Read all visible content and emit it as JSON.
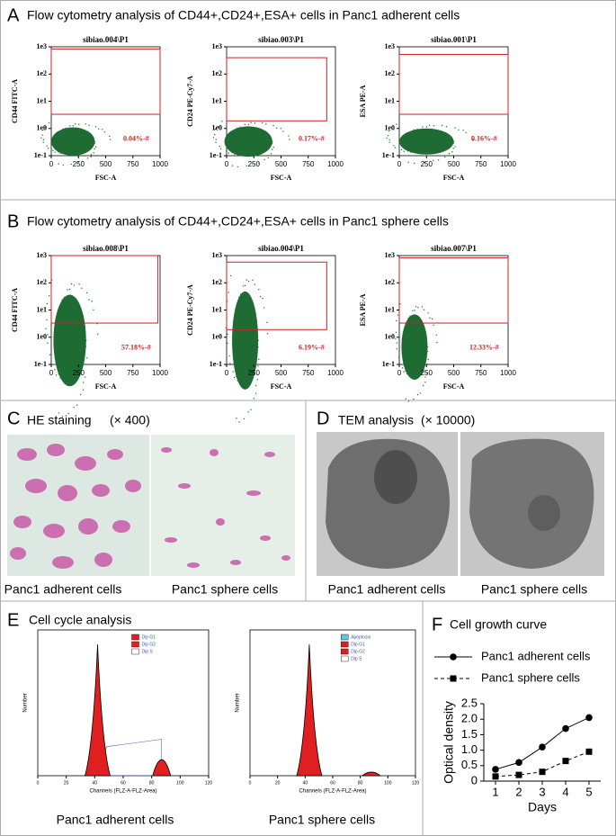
{
  "panels": {
    "A": {
      "label": "A",
      "title": "Flow cytometry analysis of CD44+,CD24+,ESA+ cells in Panc1 adherent cells"
    },
    "B": {
      "label": "B",
      "title": "Flow cytometry analysis of CD44+,CD24+,ESA+ cells in Panc1 sphere cells"
    },
    "C": {
      "label": "C",
      "title": "HE staining",
      "magnification": "(× 400)",
      "captions": [
        "Panc1 adherent cells",
        "Panc1 sphere cells"
      ]
    },
    "D": {
      "label": "D",
      "title": "TEM analysis",
      "magnification": "(× 10000)",
      "captions": [
        "Panc1 adherent cells",
        "Panc1 sphere cells"
      ]
    },
    "E": {
      "label": "E",
      "title": "Cell cycle analysis",
      "captions": [
        "Panc1 adherent cells",
        "Panc1 sphere cells"
      ]
    },
    "F": {
      "label": "F"
    }
  },
  "chart_data": [
    {
      "type": "flow",
      "title": "sibiao.004\\P1",
      "xlabel": "FSC-A",
      "ylabel": "CD44 FITC-A",
      "annotation": "0.04%-#",
      "color": "#1e6b34",
      "xlim": [
        0,
        1000
      ],
      "xticks": [
        0,
        250,
        500,
        750,
        1000
      ],
      "ylim": [
        0.1,
        1000
      ],
      "log_y": true,
      "yticks": [
        {
          "value": 0.1,
          "label": "1e-1"
        },
        {
          "value": 1,
          "label": "1e0"
        },
        {
          "value": 10,
          "label": "1e1"
        },
        {
          "value": 100,
          "label": "1e2"
        },
        {
          "value": 1000,
          "label": "1e3"
        }
      ]
    },
    {
      "type": "flow",
      "title": "sibiao.003\\P1",
      "xlabel": "FSC-A",
      "ylabel": "CD24 PE-Cy7-A",
      "annotation": "0.17%-#",
      "color": "#1e6b34",
      "xlim": [
        0,
        1000
      ],
      "xticks": [
        0,
        250,
        500,
        750,
        1000
      ],
      "ylim": [
        0.1,
        1000
      ],
      "log_y": true,
      "yticks": [
        {
          "value": 0.1,
          "label": "1e-1"
        },
        {
          "value": 1,
          "label": "1e0"
        },
        {
          "value": 10,
          "label": "1e1"
        },
        {
          "value": 100,
          "label": "1e2"
        },
        {
          "value": 1000,
          "label": "1e3"
        }
      ]
    },
    {
      "type": "flow",
      "title": "sibiao.001\\P1",
      "xlabel": "FSC-A",
      "ylabel": "ESA PE-A",
      "annotation": "0.16%-#",
      "color": "#1e6b34",
      "xlim": [
        0,
        1000
      ],
      "xticks": [
        0,
        250,
        500,
        750,
        1000
      ],
      "ylim": [
        0.1,
        1000
      ],
      "log_y": true,
      "yticks": [
        {
          "value": 0.1,
          "label": "1e-1"
        },
        {
          "value": 1,
          "label": "1e0"
        },
        {
          "value": 10,
          "label": "1e1"
        },
        {
          "value": 100,
          "label": "1e2"
        },
        {
          "value": 1000,
          "label": "1e3"
        }
      ]
    },
    {
      "type": "flow",
      "title": "sibiao.008\\P1",
      "xlabel": "FSC-A",
      "ylabel": "CD44 FITC-A",
      "annotation": "57.18%-#",
      "color": "#1e6b34",
      "xlim": [
        0,
        1000
      ],
      "xticks": [
        0,
        250,
        500,
        750,
        1000
      ],
      "ylim": [
        0.1,
        1000
      ],
      "log_y": true,
      "yticks": [
        {
          "value": 0.1,
          "label": "1e-1"
        },
        {
          "value": 1,
          "label": "1e0"
        },
        {
          "value": 10,
          "label": "1e1"
        },
        {
          "value": 100,
          "label": "1e2"
        },
        {
          "value": 1000,
          "label": "1e3"
        }
      ]
    },
    {
      "type": "flow",
      "title": "sibiao.004\\P1",
      "xlabel": "FSC-A",
      "ylabel": "CD24 PE-Cy7-A",
      "annotation": "6.19%-#",
      "color": "#1e6b34",
      "xlim": [
        0,
        1000
      ],
      "xticks": [
        0,
        250,
        500,
        750,
        1000
      ],
      "ylim": [
        0.1,
        1000
      ],
      "log_y": true,
      "yticks": [
        {
          "value": 0.1,
          "label": "1e-1"
        },
        {
          "value": 1,
          "label": "1e0"
        },
        {
          "value": 10,
          "label": "1e1"
        },
        {
          "value": 100,
          "label": "1e2"
        },
        {
          "value": 1000,
          "label": "1e3"
        }
      ]
    },
    {
      "type": "flow",
      "title": "sibiao.007\\P1",
      "xlabel": "FSC-A",
      "ylabel": "ESA PE-A",
      "annotation": "12.33%-#",
      "color": "#1e6b34",
      "xlim": [
        0,
        1000
      ],
      "xticks": [
        0,
        250,
        500,
        750,
        1000
      ],
      "ylim": [
        0.1,
        1000
      ],
      "log_y": true,
      "yticks": [
        {
          "value": 0.1,
          "label": "1e-1"
        },
        {
          "value": 1,
          "label": "1e0"
        },
        {
          "value": 10,
          "label": "1e1"
        },
        {
          "value": 100,
          "label": "1e2"
        },
        {
          "value": 1000,
          "label": "1e3"
        }
      ]
    },
    {
      "type": "cellcycle",
      "xlabel": "Channels (FLZ-A-FLZ-Area)",
      "ylabel": "Number",
      "xlim": [
        0,
        120
      ],
      "xticks": [
        0,
        20,
        40,
        60,
        80,
        100,
        120
      ],
      "legend": [
        {
          "name": "Dip G1",
          "color": "#e02020"
        },
        {
          "name": "Dip G2",
          "color": "#e02020"
        },
        {
          "name": "Dip S",
          "color": "#ffffff"
        }
      ]
    },
    {
      "type": "cellcycle",
      "xlabel": "Channels (FLZ-A-FLZ-Area)",
      "ylabel": "Number",
      "xlim": [
        0,
        120
      ],
      "xticks": [
        0,
        20,
        40,
        60,
        80,
        100,
        120
      ],
      "legend": [
        {
          "name": "Apoptosis",
          "color": "#5bc8e8"
        },
        {
          "name": "Dip G1",
          "color": "#e02020"
        },
        {
          "name": "Dip G2",
          "color": "#e02020"
        },
        {
          "name": "Dip S",
          "color": "#ffffff"
        }
      ]
    },
    {
      "type": "line",
      "title": "Cell growth curve",
      "xlabel": "Days",
      "ylabel": "Optical density",
      "x": [
        1,
        2,
        3,
        4,
        5
      ],
      "xlim": [
        0.5,
        5.5
      ],
      "xticks": [
        1,
        2,
        3,
        4,
        5
      ],
      "ylim": [
        0,
        2.5
      ],
      "yticks": [
        0,
        0.5,
        {
          "value": 1,
          "label": "1.0"
        },
        1.5,
        {
          "value": 2,
          "label": "2.0"
        },
        2.5
      ],
      "series": [
        {
          "name": "Panc1 adherent cells",
          "color": "#000000",
          "marker": "circle",
          "dashed": false,
          "values": [
            0.38,
            0.6,
            1.1,
            1.7,
            2.05
          ]
        },
        {
          "name": "Panc1 sphere cells",
          "color": "#000000",
          "marker": "square",
          "dashed": true,
          "values": [
            0.15,
            0.2,
            0.3,
            0.65,
            0.95
          ]
        }
      ]
    }
  ]
}
